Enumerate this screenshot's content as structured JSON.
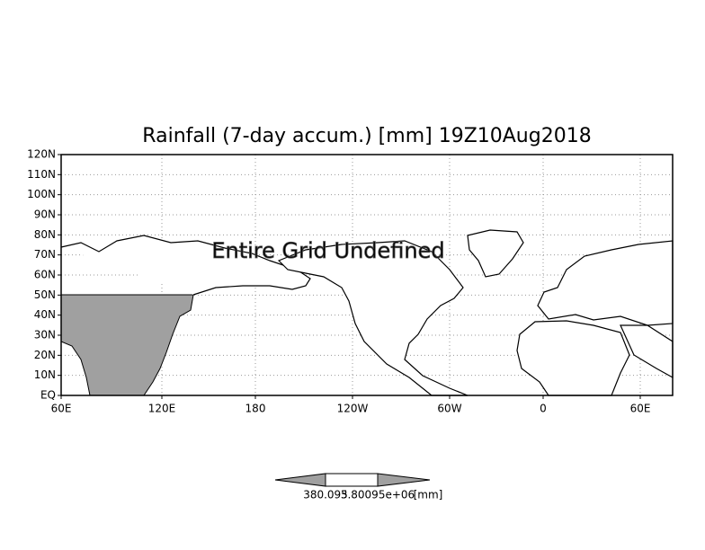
{
  "map": {
    "title": "Rainfall (7-day accum.) [mm] 19Z10Aug2018",
    "overlay_text": "Entire Grid Undefined",
    "lat_ticks": [
      "EQ",
      "10N",
      "20N",
      "30N",
      "40N",
      "50N",
      "60N",
      "70N",
      "80N",
      "90N",
      "100N",
      "110N",
      "120N"
    ],
    "lon_ticks": [
      "60E",
      "120E",
      "180",
      "120W",
      "60W",
      "0",
      "60E"
    ],
    "colorbar": {
      "labels": [
        "380.095",
        "3.80095e+06"
      ],
      "unit": "[mm]"
    }
  }
}
